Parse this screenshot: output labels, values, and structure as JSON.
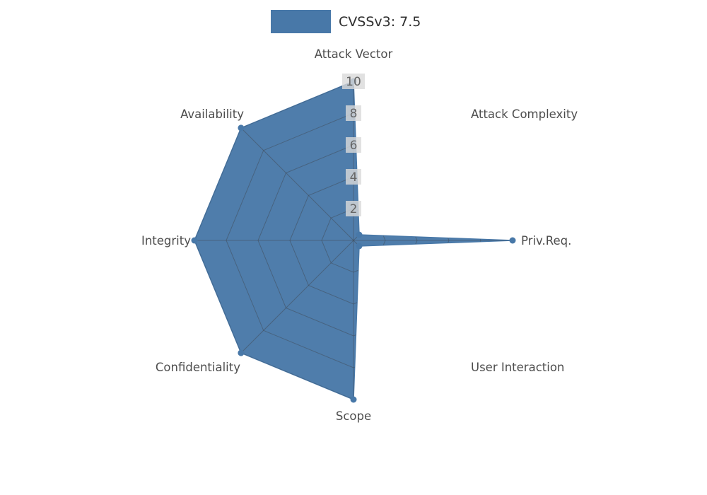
{
  "legend": {
    "label": "CVSSv3: 7.5"
  },
  "chart_data": {
    "type": "radar",
    "title": "CVSSv3: 7.5",
    "axes": [
      "Attack Vector",
      "Attack Complexity",
      "Priv.Req.",
      "User Interaction",
      "Scope",
      "Confidentiality",
      "Integrity",
      "Availability"
    ],
    "values": [
      10,
      0.5,
      10,
      0.5,
      10,
      10,
      10,
      10
    ],
    "radial_ticks": [
      2,
      4,
      6,
      8,
      10
    ],
    "r_max": 10,
    "legend_position": "top-center",
    "grid": "spiderweb-visible-inside-fill",
    "fill_color": "#4878a8",
    "grid_color": "#3f4a55",
    "axis_label_color": "#4d4d4d",
    "tick_label_color": "#666666",
    "tick_box_color": "#d9d9d9",
    "background_color": "#ffffff"
  }
}
